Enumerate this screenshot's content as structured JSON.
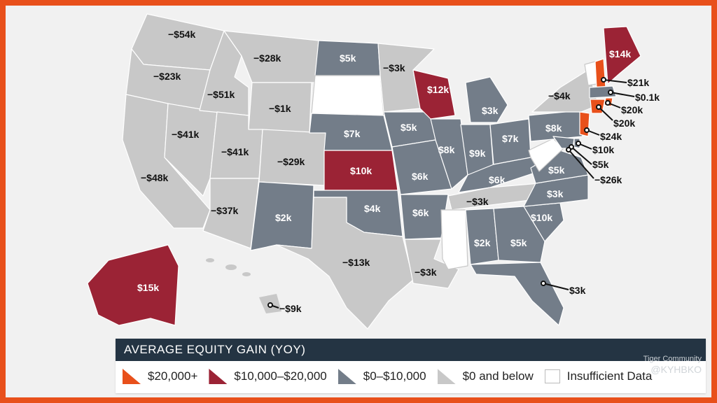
{
  "legend": {
    "title": "AVERAGE EQUITY GAIN (YOY)",
    "items": [
      {
        "label": "$20,000+",
        "color": "#e8501b"
      },
      {
        "label": "$10,000–$20,000",
        "color": "#9b2335"
      },
      {
        "label": "$0–$10,000",
        "color": "#737d89"
      },
      {
        "label": "$0 and below",
        "color": "#c8c8c8"
      },
      {
        "label": "Insufficient Data",
        "color": "#ffffff"
      }
    ]
  },
  "states": {
    "wa": "−$54k",
    "or": "−$23k",
    "ca": "−$48k",
    "nv": "−$41k",
    "id": "−$51k",
    "mt": "−$28k",
    "wy": "−$1k",
    "ut": "−$41k",
    "co": "−$29k",
    "az": "−$37k",
    "nm": "$2k",
    "nd": "$5k",
    "mn": "−$3k",
    "wi": "$12k",
    "ne": "$7k",
    "ks": "$10k",
    "ok": "$4k",
    "tx": "−$13k",
    "ia": "$5k",
    "mo": "$6k",
    "ar": "$6k",
    "la": "−$3k",
    "il": "$8k",
    "in": "$9k",
    "mi": "$3k",
    "oh": "$7k",
    "ky": "$6k",
    "tn": "−$3k",
    "al": "$2k",
    "ga": "$5k",
    "fl": "$3k",
    "sc": "$10k",
    "nc": "$3k",
    "va": "$5k",
    "pa": "$8k",
    "ny": "−$4k",
    "me": "$14k",
    "ak": "$15k",
    "hi": "−$9k",
    "nh": "$21k",
    "ma": "$0.1k",
    "ri": "$20k",
    "ct": "$20k",
    "nj": "$24k",
    "de": "$10k",
    "md": "$5k",
    "dc": "−$26k"
  },
  "watermark": {
    "brand": "Tiger Community",
    "handle": "@KYHBKO"
  }
}
